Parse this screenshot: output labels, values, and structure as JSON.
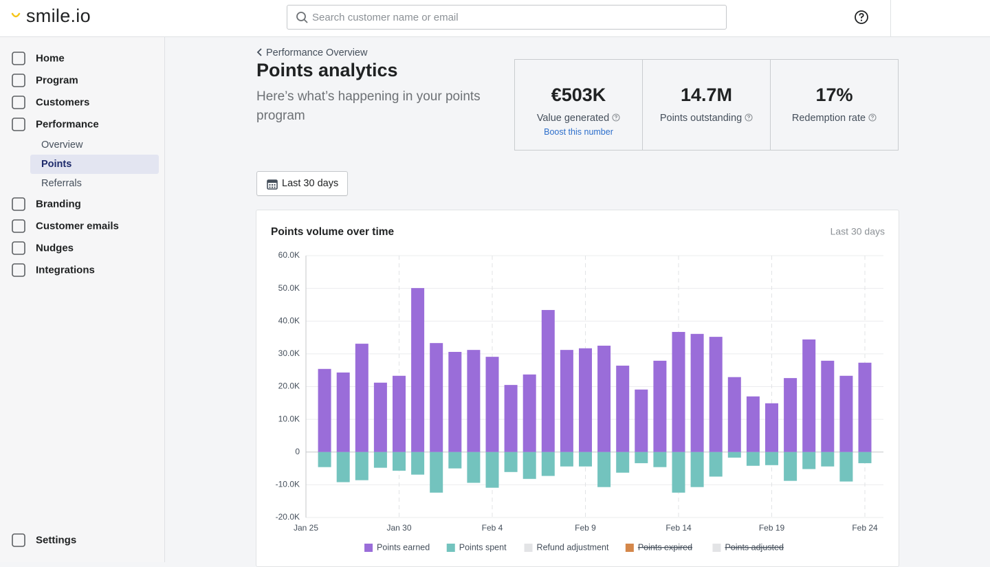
{
  "header": {
    "logo": "smile.io",
    "search_placeholder": "Search customer name or email"
  },
  "sidebar": {
    "items": [
      "Home",
      "Program",
      "Customers",
      "Performance",
      "Branding",
      "Customer emails",
      "Nudges",
      "Integrations"
    ],
    "sub_items": [
      "Overview",
      "Points",
      "Referrals"
    ],
    "active_sub": 1,
    "settings": "Settings"
  },
  "main": {
    "breadcrumb": "Performance Overview",
    "title": "Points analytics",
    "subtitle": "Here’s what’s happening in your points program",
    "stats": [
      {
        "value": "€503K",
        "label": "Value generated",
        "link": "Boost this number"
      },
      {
        "value": "14.7M",
        "label": "Points outstanding"
      },
      {
        "value": "17%",
        "label": "Redemption rate"
      }
    ],
    "date_button": "Last 30 days"
  },
  "chart_data": {
    "type": "bar",
    "title": "Points volume over time",
    "range_label": "Last 30 days",
    "categories": [
      "Jan 25",
      null,
      null,
      null,
      null,
      "Jan 30",
      null,
      null,
      null,
      null,
      "Feb 4",
      null,
      null,
      null,
      null,
      "Feb 9",
      null,
      null,
      null,
      null,
      "Feb 14",
      null,
      null,
      null,
      null,
      "Feb 19",
      null,
      null,
      null,
      null,
      "Feb 24"
    ],
    "series": [
      {
        "name": "Points earned",
        "color": "#9a6dd9",
        "values": [
          null,
          25400,
          24300,
          33100,
          21200,
          23300,
          50100,
          33300,
          30600,
          31200,
          29100,
          20500,
          23700,
          43400,
          31200,
          31700,
          32500,
          26400,
          19100,
          27900,
          36700,
          36100,
          35200,
          22900,
          17000,
          14900,
          22600,
          34400,
          27900,
          23300,
          27300
        ]
      },
      {
        "name": "Points spent",
        "color": "#73c3be",
        "values": [
          null,
          -4600,
          -9200,
          -8600,
          -4800,
          -5700,
          -6900,
          -12400,
          -5000,
          -9400,
          -10900,
          -6100,
          -8200,
          -7300,
          -4400,
          -4400,
          -10700,
          -6300,
          -3400,
          -4600,
          -12400,
          -10700,
          -7500,
          -1700,
          -4200,
          -4000,
          -8800,
          -5200,
          -4400,
          -9000,
          -3400
        ]
      }
    ],
    "legend_items": [
      {
        "name": "Refund adjustment",
        "color": "#e3e4e6",
        "disabled": false
      },
      {
        "name": "Points expired",
        "color": "#d4874a",
        "disabled": true
      },
      {
        "name": "Points adjusted",
        "color": "#e3e4e6",
        "disabled": true
      }
    ],
    "ylim": [
      -20000,
      60000
    ],
    "yticks": [
      {
        "value": -20000,
        "label": "-20.0K"
      },
      {
        "value": -10000,
        "label": "-10.0K"
      },
      0,
      {
        "value": 10000,
        "label": "10.0K"
      },
      {
        "value": 20000,
        "label": "20.0K"
      },
      {
        "value": 30000,
        "label": "30.0K"
      },
      {
        "value": 40000,
        "label": "40.0K"
      },
      {
        "value": 50000,
        "label": "50.0K"
      },
      {
        "value": 60000,
        "label": "60.0K"
      }
    ],
    "grid": true
  }
}
